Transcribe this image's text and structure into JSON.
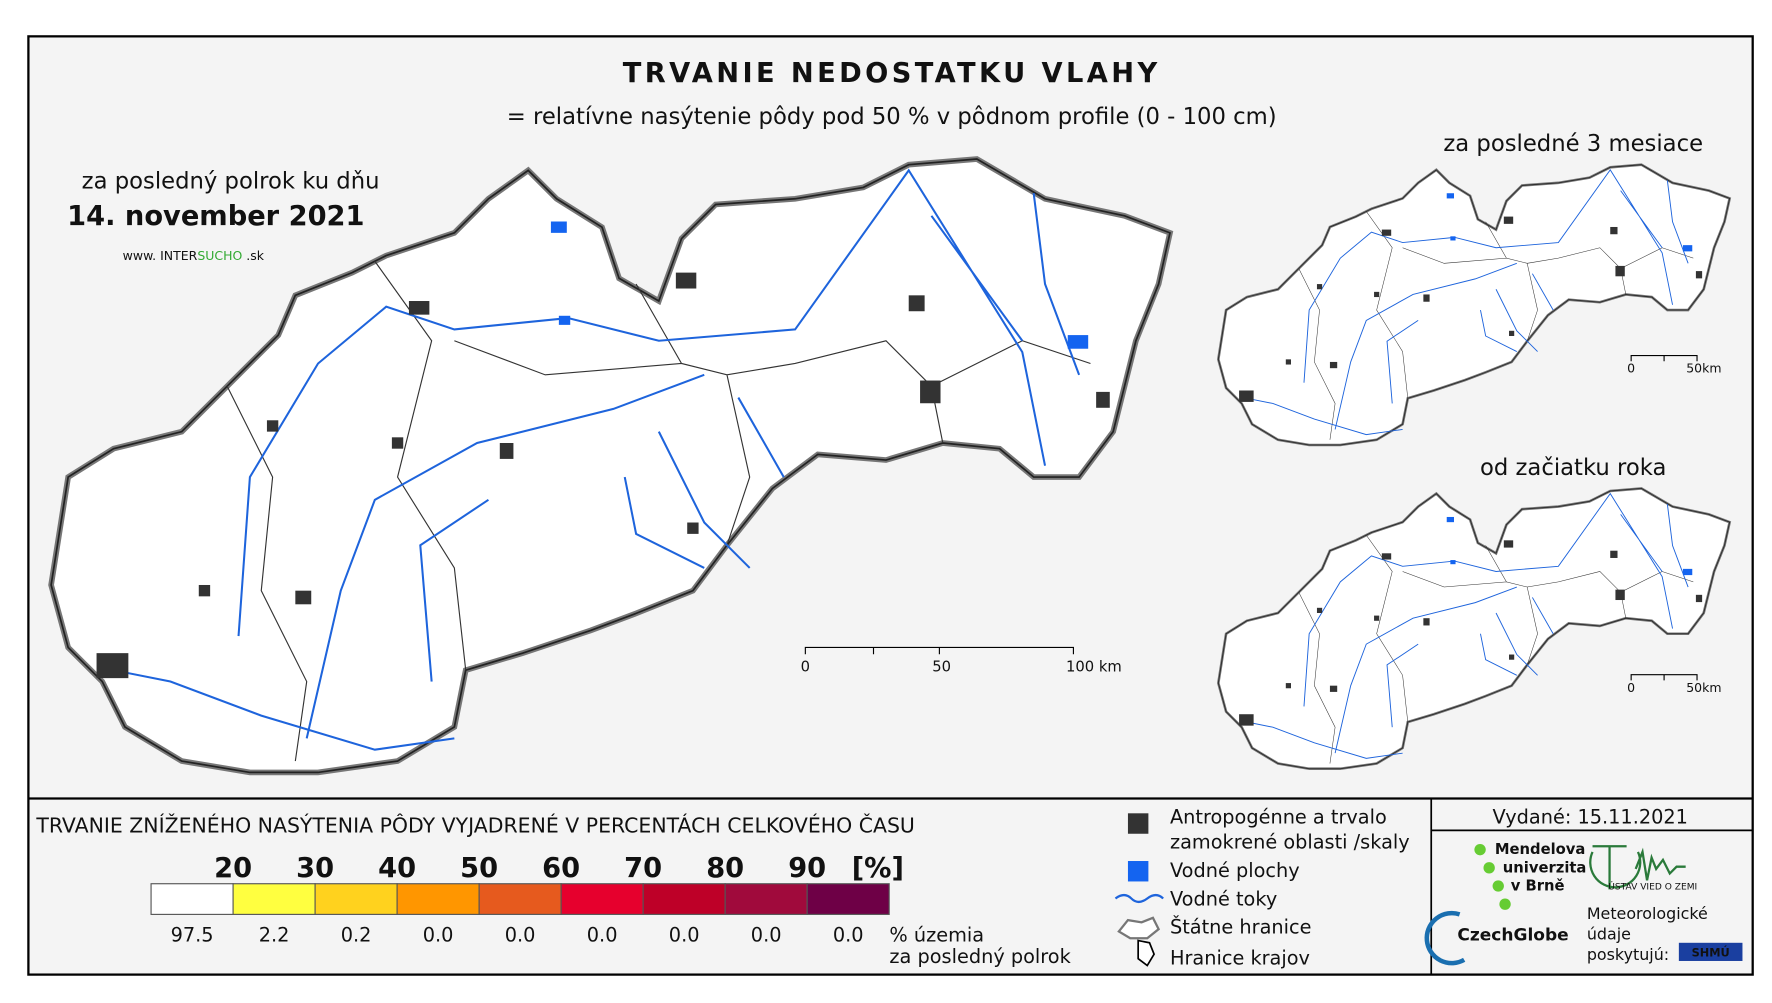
{
  "header": {
    "title": "TRVANIE NEDOSTATKU VLAHY",
    "subtitle": "= relatívne nasýtenie pôdy pod 50 % v pôdnom profile (0 - 100 cm)"
  },
  "main_map": {
    "period": "za posledný polrok ku dňu",
    "date": "14. november 2021",
    "website": {
      "prefix": "www. INTER",
      "highlight": "SUCHO",
      "suffix": " .sk"
    },
    "scale": [
      "0",
      "50",
      "100 km"
    ]
  },
  "small_maps": [
    {
      "title": "za posledné 3 mesiace",
      "scale": [
        "0",
        "50km"
      ]
    },
    {
      "title": "od začiatku roka",
      "scale": [
        "0",
        "50km"
      ]
    }
  ],
  "legend": {
    "title": "TRVANIE ZNÍŽENÉHO NASÝTENIA PÔDY VYJADRENÉ V PERCENTÁCH CELKOVÉHO ČASU",
    "class_labels": [
      "20",
      "30",
      "40",
      "50",
      "60",
      "70",
      "80",
      "90",
      "[%]"
    ],
    "colors": [
      "#ffffff",
      "#ffff40",
      "#ffd21e",
      "#ff9600",
      "#e65a1e",
      "#e6002d",
      "#be0028",
      "#a00a3c",
      "#6e0046"
    ],
    "shares": [
      "97.5",
      "2.2",
      "0.2",
      "0.0",
      "0.0",
      "0.0",
      "0.0",
      "0.0",
      "0.0"
    ],
    "shares_caption": [
      "% územia",
      "za posledný polrok"
    ],
    "items": [
      "Antropogénne a trvalo",
      "zamokrené oblasti /skaly",
      "Vodné plochy",
      "Vodné toky",
      "Štátne hranice",
      "Hranice krajov"
    ]
  },
  "footer": {
    "issued": "Vydané: 15.11.2021",
    "logos": [
      "Mendelova",
      "univerzita",
      "v Brně",
      "CzechGlobe",
      "ÚSTAV VIED O ZEMI",
      "Meteorologické",
      "údaje",
      "poskytujú:",
      "SHMÚ"
    ]
  }
}
